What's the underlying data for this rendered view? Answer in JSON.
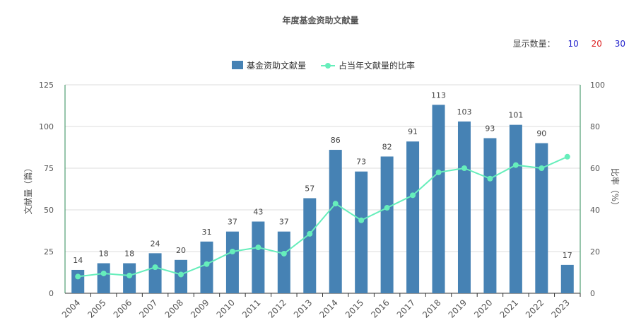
{
  "title": "年度基金资助文献量",
  "count_selector": {
    "label": "显示数量：",
    "options": [
      {
        "label": "10",
        "color": "#2222cc"
      },
      {
        "label": "20",
        "color": "#dd2222"
      },
      {
        "label": "30",
        "color": "#2222cc"
      }
    ]
  },
  "colors": {
    "bar": "#4682b4",
    "line": "#66eebb",
    "axis_left": "#2e8b57",
    "axis_right": "#2e8b57"
  },
  "chart_data": {
    "type": "bar+line",
    "categories": [
      "2004",
      "2005",
      "2006",
      "2007",
      "2008",
      "2009",
      "2010",
      "2011",
      "2012",
      "2013",
      "2014",
      "2015",
      "2016",
      "2017",
      "2018",
      "2019",
      "2020",
      "2021",
      "2022",
      "2023"
    ],
    "series": [
      {
        "name": "基金资助文献量",
        "type": "bar",
        "axis": "left",
        "values": [
          14,
          18,
          18,
          24,
          20,
          31,
          37,
          43,
          37,
          57,
          86,
          73,
          82,
          91,
          113,
          103,
          93,
          101,
          90,
          17
        ]
      },
      {
        "name": "占当年文献量的比率",
        "type": "line",
        "axis": "right",
        "values": [
          8,
          9.5,
          8.5,
          12.5,
          9,
          14,
          20,
          22,
          19,
          28.5,
          43,
          35,
          41,
          47,
          58,
          60,
          55,
          61.5,
          60,
          65.5
        ]
      }
    ],
    "ylabel": "文献量（篇）",
    "ylabel_right": "比率（%）",
    "ylim": [
      0,
      125
    ],
    "yticks": [
      0,
      25,
      50,
      75,
      100,
      125
    ],
    "ylim_right": [
      0,
      100
    ],
    "yticks_right": [
      0,
      20,
      40,
      60,
      80,
      100
    ],
    "grid": true,
    "legend_position": "top-center"
  }
}
